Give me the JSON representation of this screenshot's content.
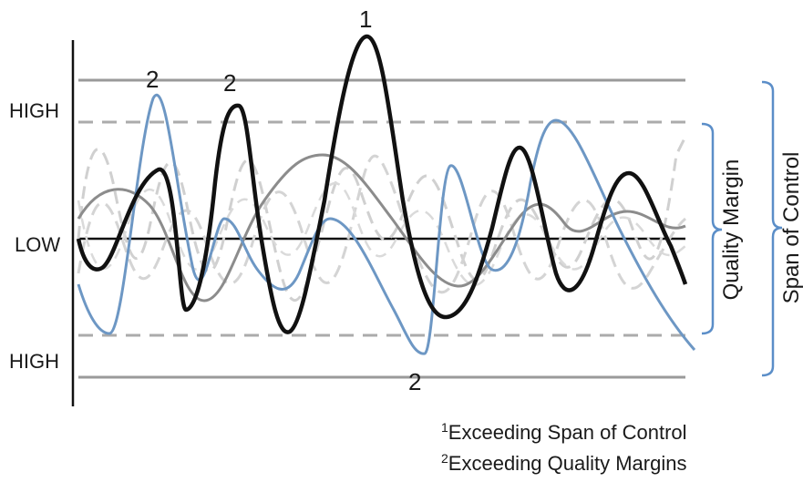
{
  "axis_labels": {
    "high_top": "HIGH",
    "low": "LOW",
    "high_bottom": "HIGH"
  },
  "markers": {
    "peak_span": "1",
    "peak_margin_a": "2",
    "peak_margin_b": "2",
    "trough_margin": "2"
  },
  "brackets": {
    "quality_margin": "Quality Margin",
    "span_of_control": "Span of Control"
  },
  "footnotes": [
    {
      "sup": "1",
      "text": "Exceeding Span of Control"
    },
    {
      "sup": "2",
      "text": "Exceeding Quality Margins"
    }
  ],
  "colors": {
    "primary_curve": "#111111",
    "blue_curve": "#6d97c4",
    "gray_curve": "#8c8c8c",
    "light_dashed": "#c8c8c8",
    "bracket": "#5b8ec8",
    "control_lines": "#9a9a9a",
    "margin_lines": "#a8a8a8"
  }
}
